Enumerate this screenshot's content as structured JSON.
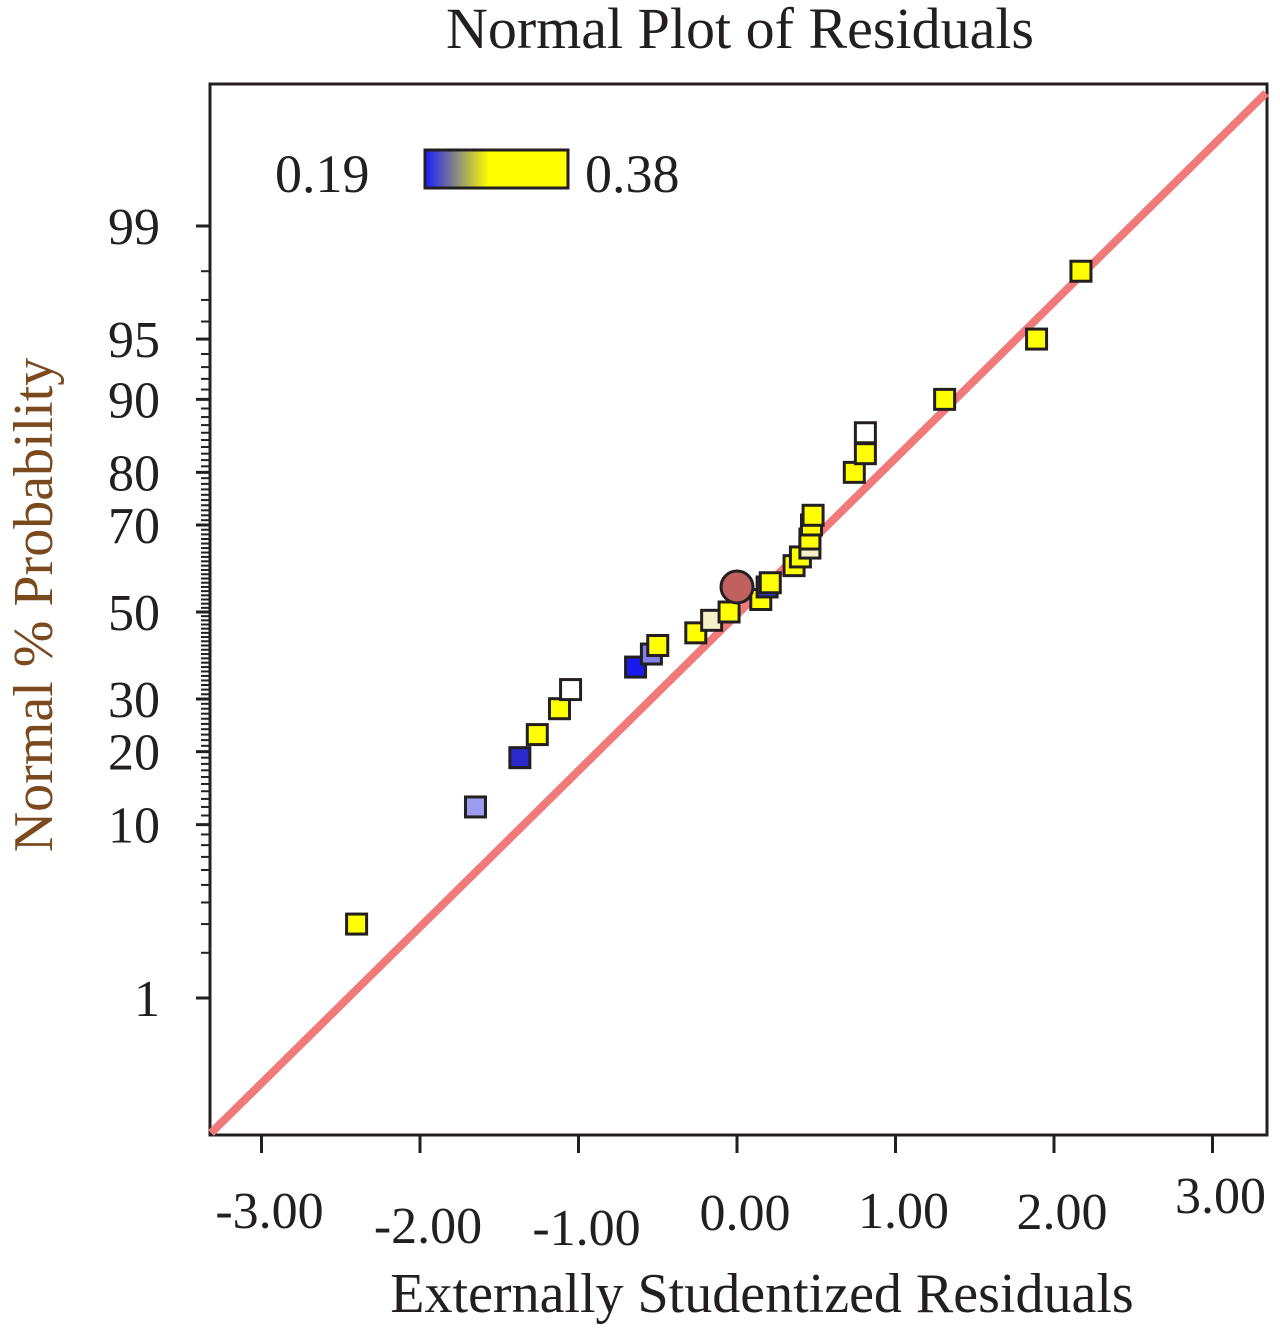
{
  "chart_data": {
    "type": "scatter",
    "title": "Normal Plot of Residuals",
    "xlabel": "Externally Studentized Residuals",
    "ylabel": "Normal % Probability",
    "xlim": [
      -3.3,
      3.3
    ],
    "x_ticks": [
      -3,
      -2,
      -1,
      0,
      1,
      2,
      3
    ],
    "x_tick_labels": [
      "-3.00",
      "-2.00",
      "-1.00",
      "0.00",
      "1.00",
      "2.00",
      "3.00"
    ],
    "y_ticks": [
      1,
      10,
      20,
      30,
      50,
      70,
      80,
      90,
      95,
      99
    ],
    "y_tick_labels": [
      "1",
      "10",
      "20",
      "30",
      "50",
      "70",
      "80",
      "90",
      "95",
      "99"
    ],
    "reference_line": {
      "color": "#f07a7a",
      "description": "normal fit line"
    },
    "legend": {
      "min_label": "0.19",
      "max_label": "0.38",
      "min_color": "#1a1aff",
      "max_color": "#ffff00"
    },
    "points": [
      {
        "x": -2.4,
        "y": 3,
        "color": "#ffff00"
      },
      {
        "x": -1.65,
        "y": 12,
        "color": "#9c9cf0"
      },
      {
        "x": -1.37,
        "y": 19,
        "color": "#2a2acc"
      },
      {
        "x": -1.26,
        "y": 23,
        "color": "#ffff00"
      },
      {
        "x": -1.12,
        "y": 28,
        "color": "#ffff00"
      },
      {
        "x": -1.05,
        "y": 32,
        "color": "#ffffff"
      },
      {
        "x": -0.64,
        "y": 37,
        "color": "#1a1aee"
      },
      {
        "x": -0.54,
        "y": 40,
        "color": "#8080e8"
      },
      {
        "x": -0.5,
        "y": 42,
        "color": "#ffff00"
      },
      {
        "x": -0.26,
        "y": 45,
        "color": "#ffff00"
      },
      {
        "x": -0.16,
        "y": 48,
        "color": "#f5f0c8"
      },
      {
        "x": -0.05,
        "y": 50,
        "color": "#ffff00"
      },
      {
        "x": 0.15,
        "y": 53,
        "color": "#ffff00"
      },
      {
        "x": 0.19,
        "y": 56,
        "color": "#3a3ad0"
      },
      {
        "x": 0.21,
        "y": 57,
        "color": "#ffff00"
      },
      {
        "x": 0.36,
        "y": 61,
        "color": "#ffff00"
      },
      {
        "x": 0.4,
        "y": 63,
        "color": "#ffff00"
      },
      {
        "x": 0.46,
        "y": 65,
        "color": "#f5f0c8"
      },
      {
        "x": 0.46,
        "y": 67,
        "color": "#ffff00"
      },
      {
        "x": 0.47,
        "y": 70,
        "color": "#ffff00"
      },
      {
        "x": 0.48,
        "y": 72,
        "color": "#ffff00"
      },
      {
        "x": 0.74,
        "y": 80,
        "color": "#ffff00"
      },
      {
        "x": 0.81,
        "y": 83,
        "color": "#ffff00"
      },
      {
        "x": 0.81,
        "y": 86,
        "color": "#ffffff"
      },
      {
        "x": 1.31,
        "y": 90,
        "color": "#ffff00"
      },
      {
        "x": 1.89,
        "y": 95,
        "color": "#ffff00"
      },
      {
        "x": 2.17,
        "y": 98,
        "color": "#ffff00"
      }
    ],
    "highlight_point": {
      "x": 0.0,
      "y": 56,
      "color": "#c06060"
    }
  }
}
